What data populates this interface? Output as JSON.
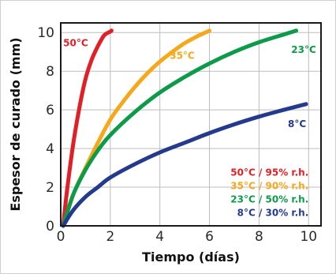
{
  "colors": {
    "frame": "#1a1a1a",
    "grid": "#bdbdbd",
    "red": "#e11f26",
    "orange": "#f6a81c",
    "green": "#0d9b4a",
    "blue": "#243a8c"
  },
  "chart_data": {
    "type": "line",
    "title": "",
    "xlabel": "Tiempo (días)",
    "ylabel": "Espesor de curado (mm)",
    "xlim": [
      0,
      10.5
    ],
    "ylim": [
      0,
      10.5
    ],
    "xticks": [
      0,
      2,
      4,
      6,
      8,
      10
    ],
    "yticks": [
      0,
      2,
      4,
      6,
      8,
      10
    ],
    "grid": true,
    "legend_position": "bottom-right",
    "series": [
      {
        "name": "50°C / 95% r.h.",
        "curve_label": "50°C",
        "color": "#e11f26",
        "x": [
          0.1,
          0.25,
          0.5,
          0.75,
          1.0,
          1.25,
          1.5,
          1.75,
          2.0,
          2.05
        ],
        "y": [
          0.0,
          1.8,
          4.2,
          6.1,
          7.6,
          8.6,
          9.3,
          9.85,
          10.05,
          10.1
        ]
      },
      {
        "name": "35°C / 90% r.h.",
        "curve_label": "35°C",
        "color": "#f6a81c",
        "x": [
          0.1,
          0.5,
          1.0,
          1.5,
          2.0,
          2.5,
          3.0,
          3.5,
          4.0,
          4.5,
          5.0,
          5.5,
          6.0
        ],
        "y": [
          0.0,
          1.6,
          3.0,
          4.3,
          5.5,
          6.4,
          7.2,
          7.9,
          8.5,
          9.0,
          9.45,
          9.8,
          10.1
        ]
      },
      {
        "name": "23°C / 50% r.h.",
        "curve_label": "23°C",
        "color": "#0d9b4a",
        "x": [
          0.1,
          0.5,
          1.0,
          1.5,
          2.0,
          3.0,
          4.0,
          5.0,
          6.0,
          7.0,
          8.0,
          9.0,
          9.5
        ],
        "y": [
          0.0,
          1.6,
          2.9,
          3.9,
          4.7,
          5.9,
          6.9,
          7.7,
          8.4,
          9.0,
          9.5,
          9.9,
          10.1
        ]
      },
      {
        "name": "8°C / 30% r.h.",
        "curve_label": "8°C",
        "color": "#243a8c",
        "x": [
          0.1,
          0.5,
          1.0,
          1.5,
          2.0,
          3.0,
          4.0,
          5.0,
          6.0,
          7.0,
          8.0,
          9.0,
          9.9
        ],
        "y": [
          0.0,
          0.8,
          1.5,
          2.0,
          2.5,
          3.2,
          3.8,
          4.3,
          4.8,
          5.25,
          5.65,
          6.0,
          6.3
        ]
      }
    ]
  }
}
